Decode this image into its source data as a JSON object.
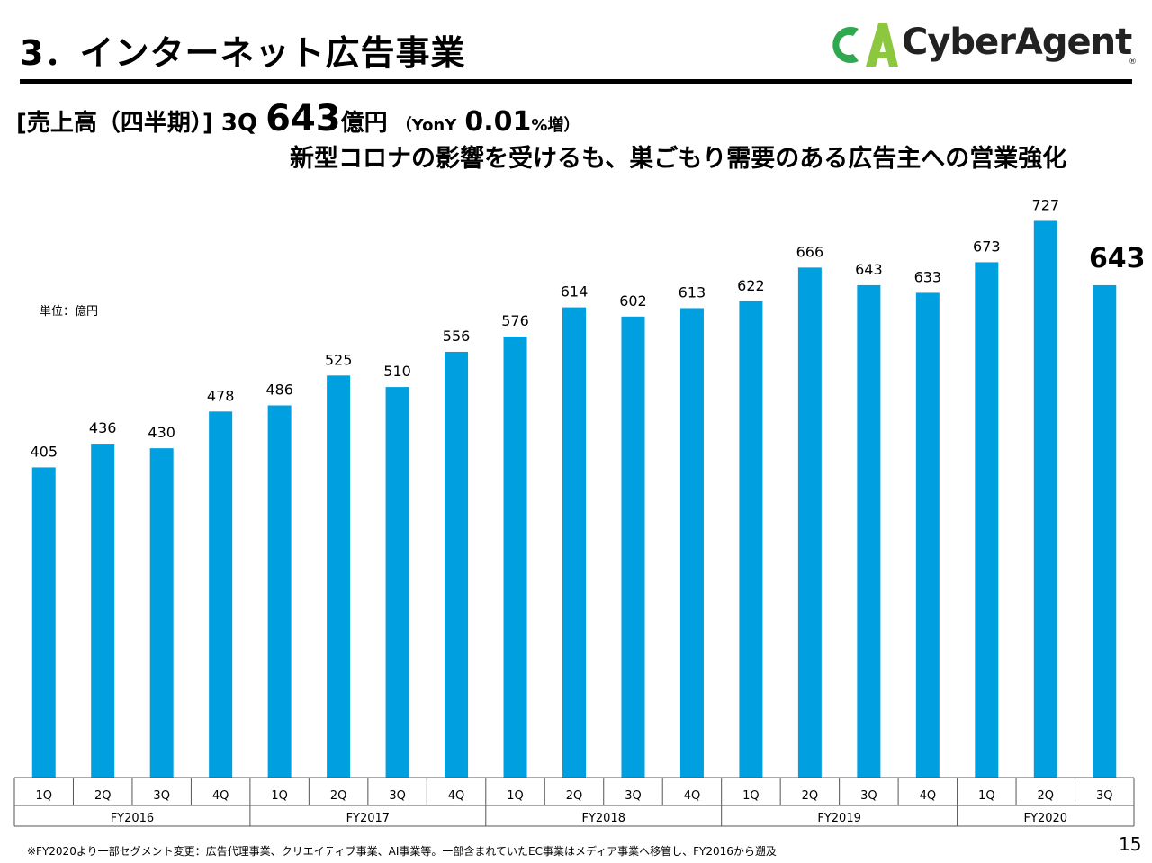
{
  "header": {
    "title": "3．インターネット広告事業",
    "logo_text": "CyberAgent",
    "logo_reg": "®"
  },
  "headline": {
    "label": "[売上高（四半期）]",
    "quarter": "3Q",
    "value": "643",
    "unit": "億円",
    "yoy_open": "（YonY",
    "yoy_value": "0.01",
    "yoy_unit": "%増）",
    "subtitle": "新型コロナの影響を受けるも、巣ごもり需要のある広告主への営業強化"
  },
  "unit_label": "単位：億円",
  "footnote": "※FY2020より一部セグメント変更：広告代理事業、クリエイティブ事業、AI事業等。一部含まれていたEC事業はメディア事業へ移管し、FY2016から遡及",
  "page_number": "15",
  "colors": {
    "bar": "#009FE0",
    "logo_green_dark": "#2FA84F",
    "logo_green_light": "#8DC63F"
  },
  "chart_data": {
    "type": "bar",
    "categories": [
      "1Q",
      "2Q",
      "3Q",
      "4Q",
      "1Q",
      "2Q",
      "3Q",
      "4Q",
      "1Q",
      "2Q",
      "3Q",
      "4Q",
      "1Q",
      "2Q",
      "3Q",
      "4Q",
      "1Q",
      "2Q",
      "3Q"
    ],
    "groups": [
      {
        "label": "FY2016",
        "count": 4
      },
      {
        "label": "FY2017",
        "count": 4
      },
      {
        "label": "FY2018",
        "count": 4
      },
      {
        "label": "FY2019",
        "count": 4
      },
      {
        "label": "FY2020",
        "count": 3
      }
    ],
    "values": [
      405,
      436,
      430,
      478,
      486,
      525,
      510,
      556,
      576,
      614,
      602,
      613,
      622,
      666,
      643,
      633,
      673,
      727,
      643
    ],
    "highlight_last": true,
    "ylim": [
      0,
      800
    ],
    "grid": false,
    "legend": "none"
  }
}
